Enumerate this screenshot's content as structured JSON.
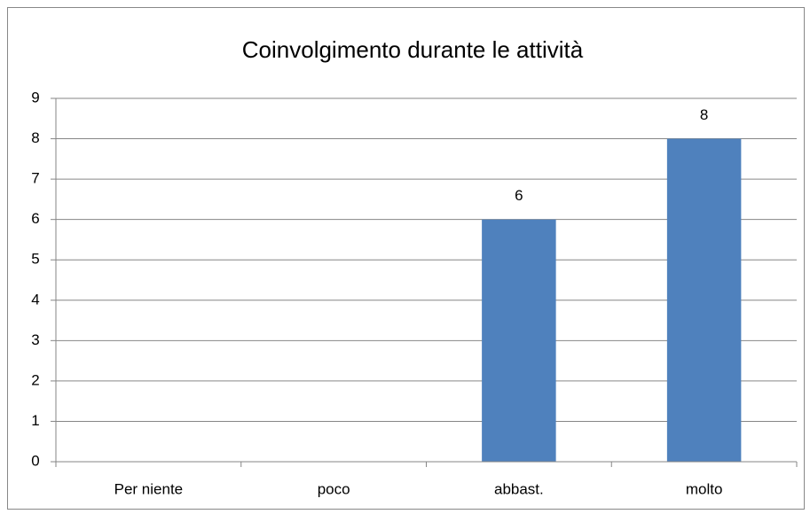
{
  "chart_data": {
    "type": "bar",
    "title": "Coinvolgimento durante le attività",
    "categories": [
      "Per niente",
      "poco",
      "abbast.",
      "molto"
    ],
    "values": [
      null,
      null,
      6,
      8
    ],
    "color": "#4f81bd",
    "ylim": [
      0,
      9
    ],
    "yticks": [
      0,
      1,
      2,
      3,
      4,
      5,
      6,
      7,
      8,
      9
    ],
    "grid": true
  }
}
